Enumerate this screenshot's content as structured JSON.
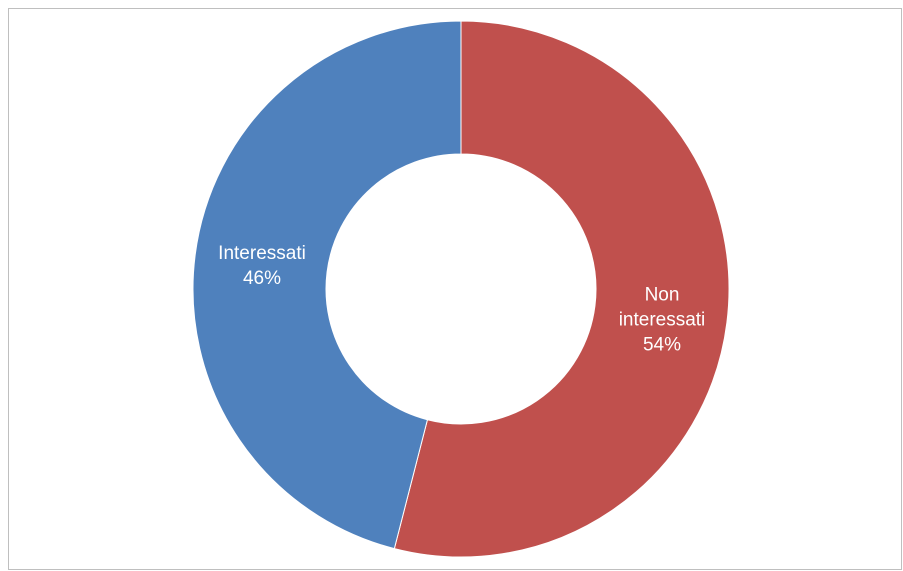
{
  "chart_data": {
    "type": "donut",
    "categories": [
      "Non interessati",
      "Interessati"
    ],
    "values": [
      54,
      46
    ],
    "value_labels": [
      "54%",
      "46%"
    ],
    "colors": [
      "#c0504d",
      "#4f81bd"
    ]
  }
}
